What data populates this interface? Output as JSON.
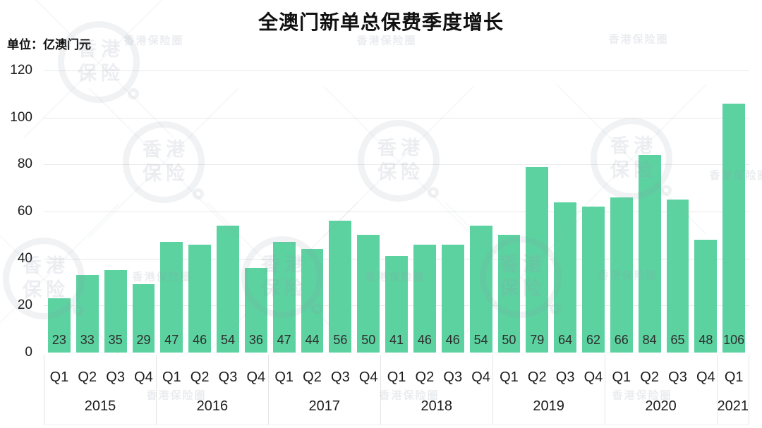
{
  "title": "全澳门新单总保费季度增长",
  "unit_label": "单位：亿澳门元",
  "colors": {
    "bar": "#5dd2a1",
    "grid": "#e8e8e8",
    "text": "#1c1c1c"
  },
  "watermark": {
    "circle_line1": "香港",
    "circle_line2": "保险",
    "text": "香港保险圈"
  },
  "chart_data": {
    "type": "bar",
    "title": "全澳门新单总保费季度增长",
    "ylabel": "单位：亿澳门元",
    "ylim": [
      0,
      120
    ],
    "yticks": [
      0,
      20,
      40,
      60,
      80,
      100,
      120
    ],
    "grid": "horizontal",
    "legend": "none",
    "bar_color": "#5dd2a1",
    "groups": [
      {
        "year": "2015",
        "quarters": [
          "Q1",
          "Q2",
          "Q3",
          "Q4"
        ],
        "values": [
          23,
          33,
          35,
          29
        ]
      },
      {
        "year": "2016",
        "quarters": [
          "Q1",
          "Q2",
          "Q3",
          "Q4"
        ],
        "values": [
          47,
          46,
          54,
          36
        ]
      },
      {
        "year": "2017",
        "quarters": [
          "Q1",
          "Q2",
          "Q3",
          "Q4"
        ],
        "values": [
          47,
          44,
          56,
          50
        ]
      },
      {
        "year": "2018",
        "quarters": [
          "Q1",
          "Q2",
          "Q3",
          "Q4"
        ],
        "values": [
          41,
          46,
          46,
          54
        ]
      },
      {
        "year": "2019",
        "quarters": [
          "Q1",
          "Q2",
          "Q3",
          "Q4"
        ],
        "values": [
          50,
          79,
          64,
          62
        ]
      },
      {
        "year": "2020",
        "quarters": [
          "Q1",
          "Q2",
          "Q3",
          "Q4"
        ],
        "values": [
          66,
          84,
          65,
          48
        ]
      },
      {
        "year": "2021",
        "quarters": [
          "Q1"
        ],
        "values": [
          106
        ]
      }
    ]
  }
}
